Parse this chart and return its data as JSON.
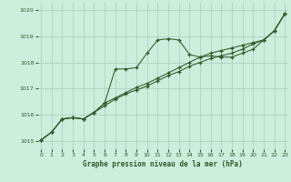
{
  "xlabel": "Graphe pression niveau de la mer (hPa)",
  "bg_color": "#cceedd",
  "grid_color": "#aaccbb",
  "line_color": "#2d5a27",
  "x_ticks": [
    0,
    1,
    2,
    3,
    4,
    5,
    6,
    7,
    8,
    9,
    10,
    11,
    12,
    13,
    14,
    15,
    16,
    17,
    18,
    19,
    20,
    21,
    22,
    23
  ],
  "yticks": [
    1015,
    1016,
    1017,
    1018,
    1019,
    1020
  ],
  "xlim": [
    -0.3,
    23.3
  ],
  "ylim": [
    1014.7,
    1020.3
  ],
  "line1": [
    1015.05,
    1015.35,
    1015.85,
    1015.9,
    1015.85,
    1016.1,
    1016.45,
    1017.75,
    1017.75,
    1017.8,
    1018.35,
    1018.85,
    1018.9,
    1018.85,
    1018.3,
    1018.2,
    1018.25,
    1018.2,
    1018.2,
    1018.35,
    1018.5,
    1018.85,
    1019.2,
    1019.85
  ],
  "line2": [
    1015.05,
    1015.35,
    1015.85,
    1015.9,
    1015.85,
    1016.1,
    1016.45,
    1016.65,
    1016.85,
    1017.05,
    1017.2,
    1017.4,
    1017.6,
    1017.8,
    1018.0,
    1018.2,
    1018.35,
    1018.45,
    1018.55,
    1018.65,
    1018.75,
    1018.85,
    1019.2,
    1019.85
  ],
  "line3": [
    1015.05,
    1015.35,
    1015.85,
    1015.9,
    1015.85,
    1016.1,
    1016.35,
    1016.6,
    1016.8,
    1016.95,
    1017.1,
    1017.3,
    1017.5,
    1017.65,
    1017.85,
    1018.0,
    1018.15,
    1018.25,
    1018.35,
    1018.5,
    1018.7,
    1018.85,
    1019.2,
    1019.85
  ]
}
